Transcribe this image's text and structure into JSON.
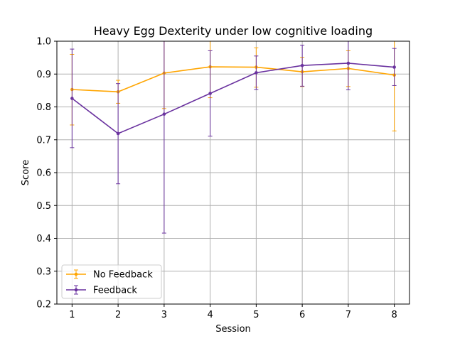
{
  "chart_data": {
    "type": "line",
    "title": "Heavy Egg Dexterity under low cognitive loading",
    "xlabel": "Session",
    "ylabel": "Score",
    "x": [
      1,
      2,
      3,
      4,
      5,
      6,
      7,
      8
    ],
    "xticks": [
      "1",
      "2",
      "3",
      "4",
      "5",
      "6",
      "7",
      "8"
    ],
    "yticks": [
      "0.2",
      "0.3",
      "0.4",
      "0.5",
      "0.6",
      "0.7",
      "0.8",
      "0.9",
      "1.0"
    ],
    "xlim": [
      0.67,
      8.33
    ],
    "ylim": [
      0.2,
      1.0
    ],
    "grid": true,
    "legend": "lower-left",
    "series": [
      {
        "name": "No Feedback",
        "color": "#FFA500",
        "values": [
          0.853,
          0.846,
          0.903,
          0.922,
          0.921,
          0.907,
          0.917,
          0.897
        ],
        "err_low": [
          0.745,
          0.811,
          0.795,
          0.828,
          0.86,
          0.862,
          0.862,
          0.727
        ],
        "err_high": [
          0.96,
          0.881,
          1.0,
          1.0,
          0.98,
          0.951,
          0.971,
          1.0
        ]
      },
      {
        "name": "Feedback",
        "color": "#6A329F",
        "values": [
          0.826,
          0.719,
          0.778,
          0.841,
          0.904,
          0.926,
          0.933,
          0.921
        ],
        "err_low": [
          0.676,
          0.566,
          0.416,
          0.711,
          0.853,
          0.863,
          0.852,
          0.865
        ],
        "err_high": [
          0.976,
          0.871,
          1.0,
          0.971,
          0.955,
          0.988,
          1.0,
          0.978
        ]
      }
    ]
  }
}
